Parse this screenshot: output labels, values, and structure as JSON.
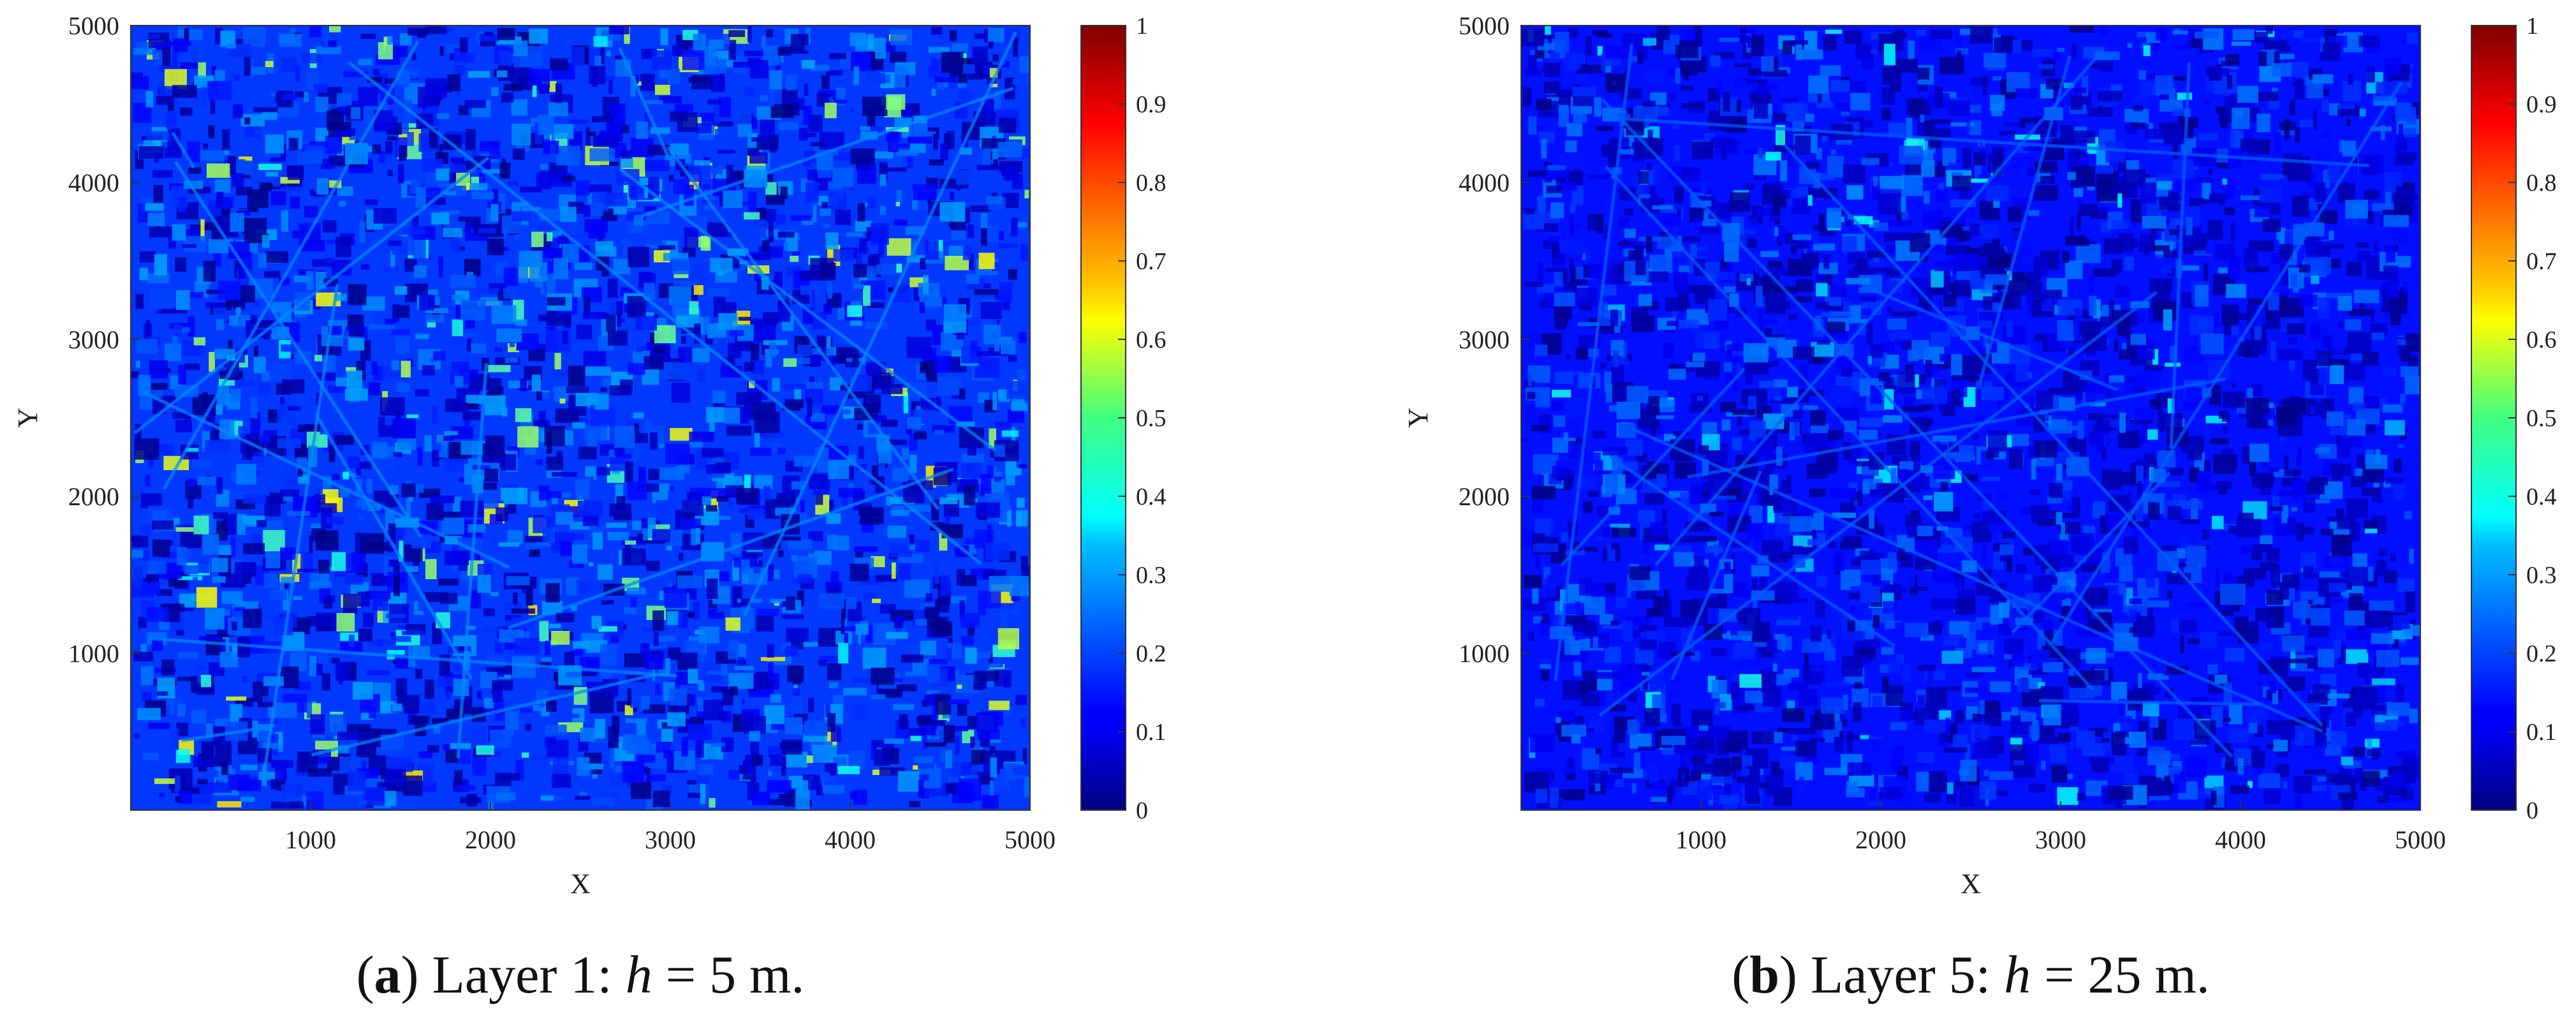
{
  "chart_data": [
    {
      "type": "heatmap",
      "xlabel": "X",
      "ylabel": "Y",
      "xlim": [
        0,
        5000
      ],
      "ylim": [
        0,
        5000
      ],
      "xticks": [
        1000,
        2000,
        3000,
        4000,
        5000
      ],
      "yticks": [
        1000,
        2000,
        3000,
        4000,
        5000
      ],
      "colorbar": {
        "colormap": "jet",
        "range": [
          0,
          1
        ],
        "ticks": [
          "0",
          "0.1",
          "0.2",
          "0.3",
          "0.4",
          "0.5",
          "0.6",
          "0.7",
          "0.8",
          "0.9",
          "1"
        ]
      },
      "value_range_shown": [
        0,
        0.65
      ],
      "dominant_value": 0.18,
      "caption": {
        "letter": "a",
        "text_before": "Layer 1: ",
        "var": "h",
        "text_after": " = 5 m."
      }
    },
    {
      "type": "heatmap",
      "xlabel": "X",
      "ylabel": "Y",
      "xlim": [
        0,
        5000
      ],
      "ylim": [
        0,
        5000
      ],
      "xticks": [
        1000,
        2000,
        3000,
        4000,
        5000
      ],
      "yticks": [
        1000,
        2000,
        3000,
        4000,
        5000
      ],
      "colorbar": {
        "colormap": "jet",
        "range": [
          0,
          1
        ],
        "ticks": [
          "0",
          "0.1",
          "0.2",
          "0.3",
          "0.4",
          "0.5",
          "0.6",
          "0.7",
          "0.8",
          "0.9",
          "1"
        ]
      },
      "value_range_shown": [
        0,
        0.4
      ],
      "dominant_value": 0.14,
      "caption": {
        "letter": "b",
        "text_before": "Layer 5: ",
        "var": "h",
        "text_after": " = 25 m."
      }
    }
  ]
}
